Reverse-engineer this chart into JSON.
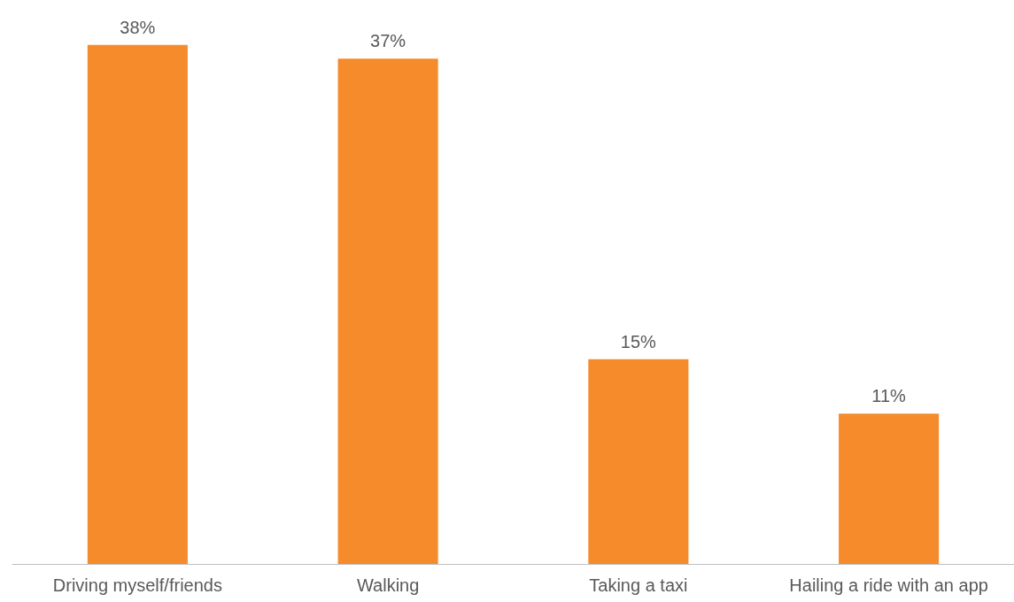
{
  "chart_data": {
    "type": "bar",
    "categories": [
      "Driving myself/friends",
      "Walking",
      "Taking a taxi",
      "Hailing a ride with an app"
    ],
    "values": [
      38,
      37,
      15,
      11
    ],
    "color": "#f68b2c",
    "value_labels": [
      "38%",
      "37%",
      "15%",
      "11%"
    ]
  }
}
